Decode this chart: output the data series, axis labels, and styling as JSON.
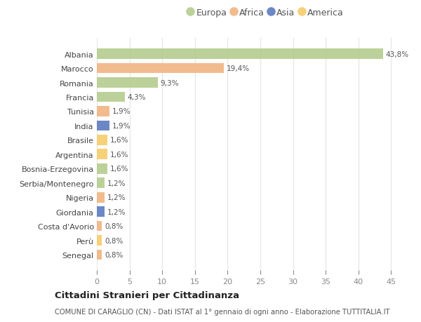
{
  "categories": [
    "Albania",
    "Marocco",
    "Romania",
    "Francia",
    "Tunisia",
    "India",
    "Brasile",
    "Argentina",
    "Bosnia-Erzegovina",
    "Serbia/Montenegro",
    "Nigeria",
    "Giordania",
    "Costa d'Avorio",
    "Perù",
    "Senegal"
  ],
  "values": [
    43.8,
    19.4,
    9.3,
    4.3,
    1.9,
    1.9,
    1.6,
    1.6,
    1.6,
    1.2,
    1.2,
    1.2,
    0.8,
    0.8,
    0.8
  ],
  "labels": [
    "43,8%",
    "19,4%",
    "9,3%",
    "4,3%",
    "1,9%",
    "1,9%",
    "1,6%",
    "1,6%",
    "1,6%",
    "1,2%",
    "1,2%",
    "1,2%",
    "0,8%",
    "0,8%",
    "0,8%"
  ],
  "continents": [
    "Europa",
    "Africa",
    "Europa",
    "Europa",
    "Africa",
    "Asia",
    "America",
    "America",
    "Europa",
    "Europa",
    "Africa",
    "Asia",
    "Africa",
    "America",
    "Africa"
  ],
  "colors": {
    "Europa": "#b5cc8e",
    "Africa": "#f0b482",
    "Asia": "#5b7bbf",
    "America": "#f5cc6a"
  },
  "legend_order": [
    "Europa",
    "Africa",
    "Asia",
    "America"
  ],
  "bg_color": "#ffffff",
  "plot_bg_color": "#ffffff",
  "grid_color": "#e8e8e8",
  "title": "Cittadini Stranieri per Cittadinanza",
  "subtitle": "COMUNE DI CARAGLIO (CN) - Dati ISTAT al 1° gennaio di ogni anno - Elaborazione TUTTITALIA.IT",
  "xlim": [
    0,
    47
  ],
  "xticks": [
    0,
    5,
    10,
    15,
    20,
    25,
    30,
    35,
    40,
    45
  ]
}
